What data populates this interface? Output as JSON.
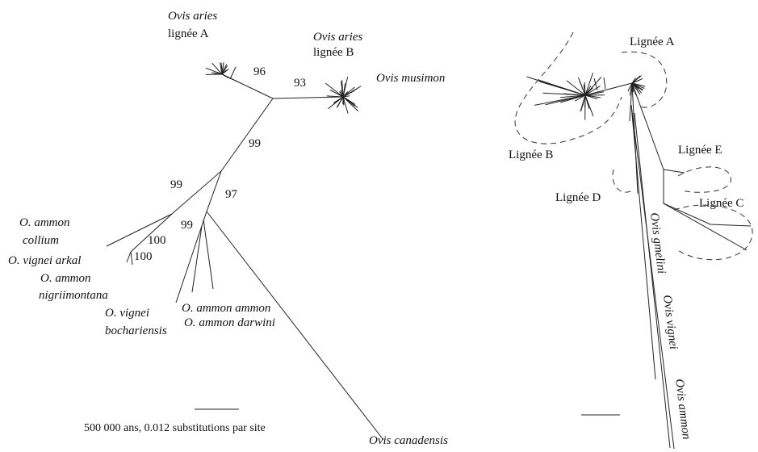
{
  "left_tree": {
    "taxa": [
      "Ovis aries",
      "lignée A",
      "Ovis aries",
      "lignée B",
      "Ovis musimon",
      "O. ammon",
      "collium",
      "O. vignei arkal",
      "O. ammon",
      "nigriimontana",
      "O. vignei",
      "bochariensis",
      "O. ammon ammon",
      "O. ammon darwini",
      "Ovis canadensis"
    ],
    "support": [
      "96",
      "93",
      "99",
      "99",
      "97",
      "100",
      "100",
      "99"
    ],
    "scale": "500 000 ans, 0.012 substitutions par site"
  },
  "right_tree": {
    "lineages": [
      "Lignée A",
      "Lignée B",
      "Lignée E",
      "Lignée D",
      "Lignée C"
    ],
    "species": [
      "Ovis gmelini",
      "Ovis vignei",
      "Ovis ammon"
    ]
  }
}
